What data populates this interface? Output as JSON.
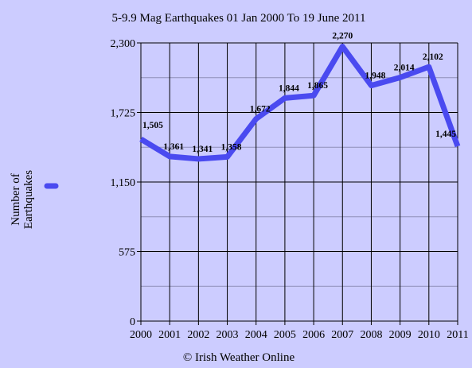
{
  "chart_data": {
    "type": "line",
    "title": "5-9.9 Mag Earthquakes 01 Jan  2000 To 19 June 2011",
    "ylabel_lines": [
      "Number of",
      "Earthquakes"
    ],
    "xlabel": "",
    "x": [
      "2000",
      "2001",
      "2002",
      "2003",
      "2004",
      "2005",
      "2006",
      "2007",
      "2008",
      "2009",
      "2010",
      "2011"
    ],
    "series": [
      {
        "values": [
          1505,
          1361,
          1341,
          1358,
          1672,
          1844,
          1865,
          2270,
          1948,
          2014,
          2102,
          1445
        ],
        "labels": [
          "1,505",
          "1,361",
          "1,341",
          "1,358",
          "1,672",
          "1,844",
          "1,865",
          "2,270",
          "1,948",
          "2,014",
          "2,102",
          "1,445"
        ],
        "color": "#4a4af0"
      }
    ],
    "ylim": [
      0,
      2300
    ],
    "yticks": [
      0,
      575,
      1150,
      1725,
      2300
    ],
    "ytick_labels": [
      "0",
      "575",
      "1,150",
      "1,725",
      "2,300"
    ],
    "grid": true,
    "legend": "left",
    "colors": {
      "background": "#ccccff",
      "grid": "#000000",
      "minor_grid": "#8f8fb8"
    }
  },
  "credit": "© Irish Weather Online"
}
